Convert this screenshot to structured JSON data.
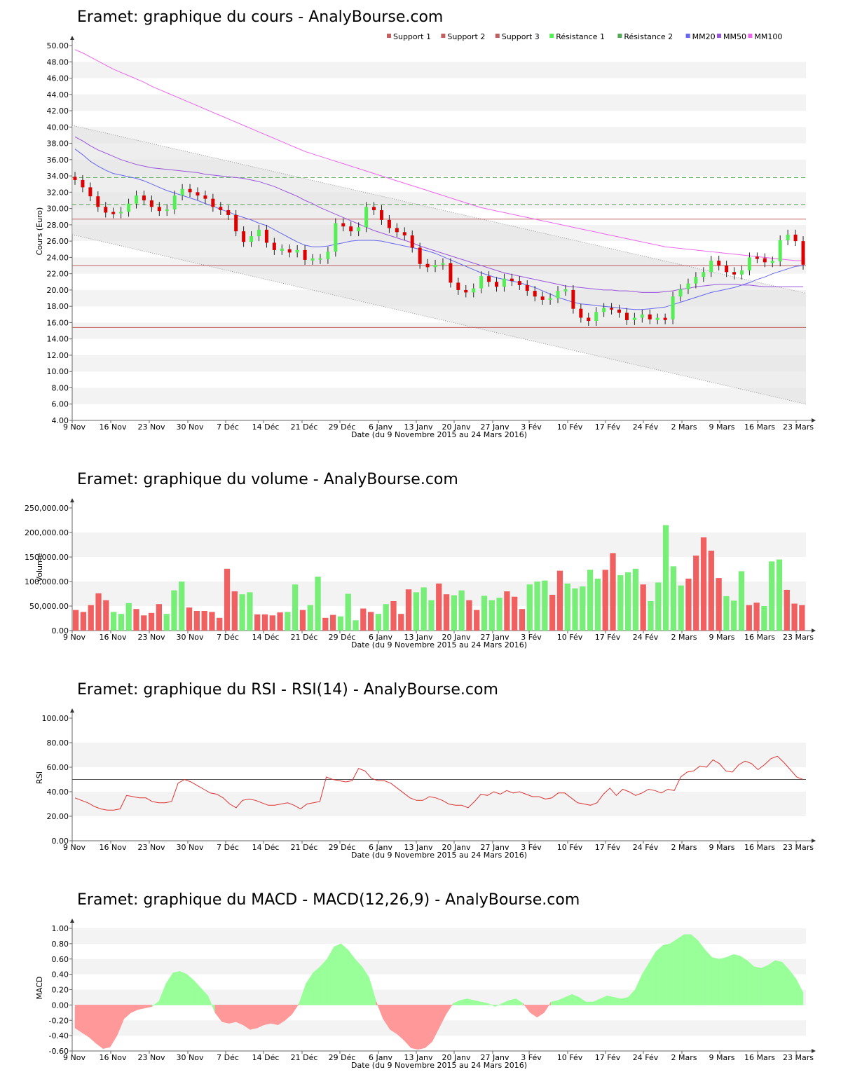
{
  "x_axis": {
    "tick_labels": [
      "9 Nov",
      "16 Nov",
      "23 Nov",
      "30 Nov",
      "7 Déc",
      "14 Déc",
      "21 Déc",
      "29 Déc",
      "6 Janv",
      "13 Janv",
      "20 Janv",
      "27 Janv",
      "3 Fév",
      "10 Fév",
      "17 Fév",
      "24 Fév",
      "2 Mars",
      "9 Mars",
      "16 Mars",
      "23 Mars"
    ],
    "label": "Date (du 9 Novembre 2015 au 24 Mars 2016)"
  },
  "colors": {
    "up": "#55ee55",
    "down": "#dd0000",
    "support": "#c06060",
    "resistance": "#55aa55",
    "mm20": "#6666ee",
    "mm50": "#9955dd",
    "mm100": "#ee66ee",
    "vol_up": "#77ee77",
    "vol_down": "#f06060",
    "rsi": "#dd3333",
    "macd_pos": "#99ff99",
    "macd_neg": "#ff9999"
  },
  "chart_data": [
    {
      "id": "price",
      "type": "candlestick",
      "title": "Eramet: graphique du cours - AnalyBourse.com",
      "ylabel": "Cours (Euro)",
      "ylim": [
        4,
        50
      ],
      "y_ticks": [
        "4.00",
        "6.00",
        "8.00",
        "10.00",
        "12.00",
        "14.00",
        "16.00",
        "18.00",
        "20.00",
        "22.00",
        "24.00",
        "26.00",
        "28.00",
        "30.00",
        "32.00",
        "34.00",
        "36.00",
        "38.00",
        "40.00",
        "42.00",
        "44.00",
        "46.00",
        "48.00",
        "50.00"
      ],
      "legend": [
        "Support 1",
        "Support 2",
        "Support 3",
        "Résistance 1",
        "Résistance 2",
        "MM20",
        "MM50",
        "MM100"
      ],
      "support_levels": [
        28.7,
        23.0,
        15.4
      ],
      "resistance_levels": [
        30.5,
        33.8
      ],
      "close": [
        33.5,
        32.6,
        31.5,
        30.2,
        29.5,
        29.4,
        29.6,
        30.6,
        31.6,
        31.0,
        30.2,
        29.7,
        29.9,
        31.6,
        32.4,
        32.0,
        31.6,
        31.2,
        30.2,
        29.8,
        29.2,
        27.2,
        25.9,
        26.6,
        27.4,
        25.8,
        24.9,
        25.0,
        24.6,
        24.9,
        23.7,
        23.8,
        23.8,
        24.7,
        28.2,
        27.8,
        27.2,
        27.7,
        30.2,
        29.8,
        28.6,
        27.6,
        27.1,
        26.7,
        25.2,
        23.2,
        22.8,
        23.1,
        23.3,
        20.9,
        20.0,
        19.7,
        20.2,
        21.7,
        21.0,
        20.4,
        21.4,
        21.1,
        20.6,
        19.9,
        19.2,
        18.8,
        19.0,
        19.9,
        20.0,
        17.7,
        16.6,
        16.2,
        17.3,
        17.8,
        17.6,
        17.2,
        16.3,
        16.6,
        17.0,
        16.4,
        16.5,
        16.4,
        19.2,
        20.1,
        20.8,
        21.6,
        22.2,
        23.6,
        23.0,
        22.2,
        21.9,
        22.4,
        24.0,
        23.9,
        23.4,
        23.5,
        26.1,
        26.8,
        26.0,
        23.1
      ],
      "mm20": [
        37.3,
        36.6,
        35.8,
        35.2,
        34.7,
        34.3,
        34.1,
        33.9,
        33.7,
        33.4,
        33.0,
        32.6,
        32.2,
        31.9,
        31.6,
        31.3,
        31.0,
        30.6,
        30.3,
        29.9,
        29.6,
        29.2,
        28.9,
        28.6,
        28.2,
        27.9,
        27.4,
        26.9,
        26.4,
        25.9,
        25.5,
        25.3,
        25.3,
        25.4,
        25.6,
        25.8,
        26.0,
        26.1,
        26.1,
        26.1,
        26.0,
        25.8,
        25.6,
        25.4,
        25.2,
        25.0,
        24.8,
        24.5,
        24.1,
        23.7,
        23.3,
        22.9,
        22.5,
        22.1,
        21.8,
        21.5,
        21.3,
        21.1,
        20.9,
        20.6,
        20.3,
        19.9,
        19.5,
        19.1,
        18.8,
        18.5,
        18.3,
        18.2,
        18.1,
        18.0,
        17.9,
        17.8,
        17.7,
        17.6,
        17.6,
        17.7,
        17.8,
        17.9,
        18.2,
        18.5,
        18.8,
        19.1,
        19.4,
        19.7,
        19.9,
        20.1,
        20.3,
        20.6,
        20.9,
        21.3,
        21.6,
        22.0,
        22.3,
        22.6,
        22.9,
        23.0
      ],
      "mm50": [
        38.8,
        38.3,
        37.7,
        37.2,
        36.8,
        36.4,
        36.0,
        35.7,
        35.4,
        35.2,
        35.0,
        34.9,
        34.8,
        34.7,
        34.6,
        34.5,
        34.4,
        34.2,
        34.1,
        34.0,
        33.9,
        33.8,
        33.7,
        33.5,
        33.3,
        33.0,
        32.7,
        32.3,
        31.9,
        31.5,
        31.0,
        30.6,
        30.1,
        29.7,
        29.3,
        28.9,
        28.5,
        28.1,
        27.7,
        27.3,
        27.0,
        26.7,
        26.4,
        26.1,
        25.8,
        25.4,
        25.1,
        24.8,
        24.5,
        24.2,
        23.9,
        23.6,
        23.3,
        23.0,
        22.7,
        22.4,
        22.1,
        21.9,
        21.7,
        21.5,
        21.3,
        21.1,
        20.9,
        20.7,
        20.5,
        20.4,
        20.3,
        20.2,
        20.1,
        20.0,
        20.0,
        19.9,
        19.9,
        19.8,
        19.7,
        19.7,
        19.7,
        19.8,
        19.9,
        20.1,
        20.2,
        20.4,
        20.5,
        20.6,
        20.7,
        20.7,
        20.7,
        20.6,
        20.6,
        20.5,
        20.4,
        20.4,
        20.4,
        20.4,
        20.4,
        20.4
      ],
      "mm100": [
        49.5,
        49.1,
        48.6,
        48.1,
        47.6,
        47.1,
        46.7,
        46.3,
        45.9,
        45.5,
        45.0,
        44.6,
        44.2,
        43.8,
        43.4,
        43.0,
        42.6,
        42.2,
        41.8,
        41.4,
        41.0,
        40.6,
        40.2,
        39.8,
        39.4,
        39.0,
        38.6,
        38.2,
        37.8,
        37.4,
        37.0,
        36.7,
        36.4,
        36.1,
        35.8,
        35.5,
        35.2,
        34.9,
        34.6,
        34.3,
        34.0,
        33.7,
        33.4,
        33.1,
        32.8,
        32.5,
        32.2,
        31.9,
        31.6,
        31.3,
        31.0,
        30.7,
        30.4,
        30.1,
        29.9,
        29.7,
        29.5,
        29.3,
        29.1,
        28.9,
        28.7,
        28.5,
        28.3,
        28.1,
        27.9,
        27.7,
        27.5,
        27.3,
        27.1,
        26.9,
        26.7,
        26.5,
        26.3,
        26.1,
        25.9,
        25.7,
        25.5,
        25.3,
        25.2,
        25.1,
        25.0,
        24.9,
        24.8,
        24.7,
        24.6,
        24.5,
        24.4,
        24.3,
        24.2,
        24.1,
        24.0,
        23.9,
        23.8,
        23.7,
        23.6,
        23.6
      ]
    },
    {
      "id": "volume",
      "type": "bar",
      "title": "Eramet: graphique du volume - AnalyBourse.com",
      "ylabel": "Volume",
      "ylim": [
        0,
        250000
      ],
      "y_ticks": [
        "0.00",
        "50,000.00",
        "100,000.00",
        "150,000.00",
        "200,000.00",
        "250,000.00"
      ],
      "values": [
        42000,
        38000,
        52000,
        76000,
        62000,
        38000,
        34000,
        56000,
        44000,
        31000,
        36000,
        54000,
        34000,
        82000,
        100000,
        47000,
        40000,
        40000,
        38000,
        26000,
        126000,
        80000,
        74000,
        78000,
        33000,
        33000,
        31000,
        37000,
        38000,
        94000,
        42000,
        52000,
        110000,
        26000,
        32000,
        29000,
        75000,
        21000,
        45000,
        38000,
        34000,
        54000,
        60000,
        34000,
        84000,
        78000,
        88000,
        62000,
        96000,
        74000,
        72000,
        82000,
        62000,
        42000,
        71000,
        62000,
        67000,
        80000,
        69000,
        44000,
        94000,
        100000,
        102000,
        73000,
        122000,
        96000,
        86000,
        90000,
        124000,
        106000,
        124000,
        158000,
        113000,
        119000,
        126000,
        94000,
        60000,
        98000,
        215000,
        131000,
        92000,
        106000,
        153000,
        190000,
        163000,
        107000,
        70000,
        61000,
        121000,
        52000,
        57000,
        50000,
        141000,
        145000,
        83000,
        55000,
        52000
      ]
    },
    {
      "id": "rsi",
      "type": "line",
      "title": "Eramet: graphique du RSI - RSI(14) - AnalyBourse.com",
      "ylabel": "RSI",
      "ylim": [
        0,
        100
      ],
      "y_ticks": [
        "0.00",
        "20.00",
        "40.00",
        "60.00",
        "80.00",
        "100.00"
      ],
      "reference": 50,
      "values": [
        35,
        33,
        31,
        28,
        26,
        25,
        25,
        26,
        37,
        36,
        35,
        35,
        32,
        31,
        31,
        32,
        47,
        50,
        48,
        45,
        42,
        39,
        38,
        35,
        30,
        27,
        33,
        34,
        33,
        31,
        29,
        29,
        30,
        31,
        29,
        26,
        30,
        31,
        32,
        52,
        50,
        49,
        48,
        49,
        59,
        57,
        51,
        49,
        49,
        47,
        43,
        39,
        35,
        33,
        33,
        36,
        35,
        33,
        30,
        29,
        29,
        27,
        32,
        38,
        37,
        40,
        38,
        41,
        39,
        40,
        38,
        36,
        36,
        34,
        35,
        39,
        39,
        35,
        31,
        30,
        29,
        31,
        38,
        43,
        37,
        42,
        40,
        37,
        39,
        42,
        41,
        39,
        42,
        41,
        52,
        56,
        57,
        61,
        60,
        66,
        63,
        57,
        56,
        62,
        65,
        63,
        58,
        62,
        67,
        69,
        64,
        58,
        52,
        50
      ]
    },
    {
      "id": "macd",
      "type": "area",
      "title": "Eramet: graphique du MACD - MACD(12,26,9) - AnalyBourse.com",
      "ylabel": "MACD",
      "ylim": [
        -0.6,
        1.0
      ],
      "y_ticks": [
        "-0.60",
        "-0.40",
        "-0.20",
        "0.00",
        "0.20",
        "0.40",
        "0.60",
        "0.80",
        "1.00"
      ],
      "values": [
        -0.3,
        -0.36,
        -0.42,
        -0.5,
        -0.57,
        -0.55,
        -0.4,
        -0.18,
        -0.1,
        -0.06,
        -0.04,
        -0.02,
        0.05,
        0.28,
        0.42,
        0.44,
        0.4,
        0.32,
        0.22,
        0.12,
        -0.1,
        -0.22,
        -0.24,
        -0.22,
        -0.26,
        -0.32,
        -0.3,
        -0.26,
        -0.24,
        -0.26,
        -0.2,
        -0.12,
        0.02,
        0.28,
        0.42,
        0.5,
        0.6,
        0.76,
        0.8,
        0.72,
        0.6,
        0.5,
        0.36,
        0.05,
        -0.18,
        -0.32,
        -0.38,
        -0.46,
        -0.56,
        -0.58,
        -0.56,
        -0.48,
        -0.3,
        -0.12,
        0.02,
        0.06,
        0.08,
        0.06,
        0.04,
        0.02,
        -0.02,
        0.02,
        0.06,
        0.08,
        0.02,
        -0.1,
        -0.16,
        -0.1,
        0.04,
        0.06,
        0.1,
        0.14,
        0.1,
        0.04,
        0.04,
        0.08,
        0.12,
        0.1,
        0.08,
        0.1,
        0.2,
        0.4,
        0.55,
        0.7,
        0.78,
        0.8,
        0.86,
        0.92,
        0.92,
        0.84,
        0.72,
        0.62,
        0.6,
        0.62,
        0.66,
        0.64,
        0.58,
        0.5,
        0.48,
        0.52,
        0.58,
        0.56,
        0.46,
        0.34,
        0.16
      ]
    }
  ]
}
